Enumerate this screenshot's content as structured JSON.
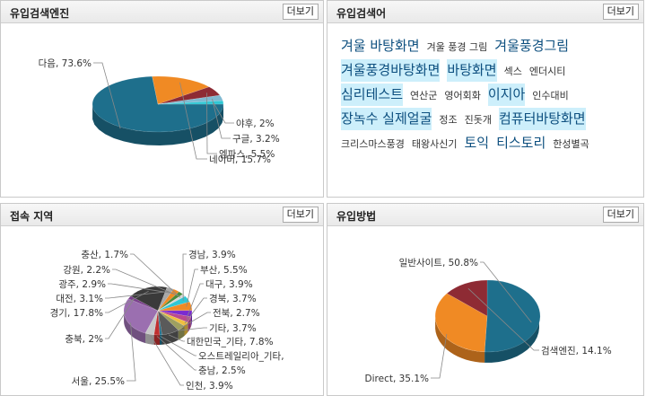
{
  "panels": {
    "engine": {
      "title": "유입검색엔진",
      "more": "더보기"
    },
    "keywords": {
      "title": "유입검색어",
      "more": "더보기"
    },
    "region": {
      "title": "접속 지역",
      "more": "더보기"
    },
    "method": {
      "title": "유입방법",
      "more": "더보기"
    }
  },
  "keywords": [
    {
      "text": "겨울 바탕화면",
      "size": 3
    },
    {
      "text": "겨울 풍경 그림",
      "size": 1
    },
    {
      "text": "겨울풍경그림",
      "size": 3
    },
    {
      "text": "겨울풍경바탕화면",
      "size": 3,
      "sel": true
    },
    {
      "text": "바탕화면",
      "size": 3,
      "sel": true
    },
    {
      "text": "섹스",
      "size": 1
    },
    {
      "text": "엔더시티",
      "size": 1
    },
    {
      "text": "심리테스트",
      "size": 3,
      "sel": true
    },
    {
      "text": "연산군",
      "size": 1
    },
    {
      "text": "영어회화",
      "size": 1
    },
    {
      "text": "이지아",
      "size": 3,
      "sel": true
    },
    {
      "text": "인수대비",
      "size": 1
    },
    {
      "text": "장녹수 실제얼굴",
      "size": 3,
      "sel": true
    },
    {
      "text": "정조",
      "size": 1
    },
    {
      "text": "진돗개",
      "size": 1
    },
    {
      "text": "컴퓨터바탕화면",
      "size": 3,
      "sel": true
    },
    {
      "text": "크리스마스풍경",
      "size": 1
    },
    {
      "text": "태왕사신기",
      "size": 1
    },
    {
      "text": "토익",
      "size": 3
    },
    {
      "text": "티스토리",
      "size": 3
    },
    {
      "text": "한성별곡",
      "size": 1
    }
  ],
  "chart_data": [
    {
      "type": "pie",
      "title": "유입검색엔진",
      "labels": [
        "다음",
        "네이버",
        "엠파스",
        "구글",
        "야후"
      ],
      "values": [
        73.6,
        15.7,
        5.5,
        3.2,
        2
      ],
      "label_text": [
        "다음, 73.6%",
        "네이버, 15.7%",
        "엠파스, 5.5%",
        "구글, 3.2%",
        "야후, 2%"
      ],
      "colors": [
        "#1e6f8c",
        "#f08a24",
        "#8e2b34",
        "#7fb9d1",
        "#2fc7d4"
      ]
    },
    {
      "type": "pie",
      "title": "접속 지역",
      "labels": [
        "서울",
        "충북",
        "경기",
        "대전",
        "광주",
        "강원",
        "충산",
        "경남",
        "부산",
        "대구",
        "경북",
        "전북",
        "기타",
        "대한민국_기타",
        "오스트레일리아_기타",
        "충남",
        "인천"
      ],
      "values": [
        25.5,
        2,
        17.8,
        3.1,
        2.9,
        2.2,
        1.7,
        3.9,
        5.5,
        3.9,
        3.7,
        2.7,
        3.7,
        7.8,
        1,
        2.5,
        3.9
      ],
      "label_text": [
        "서울, 25.5%",
        "충북, 2%",
        "경기, 17.8%",
        "대전, 3.1%",
        "광주, 2.9%",
        "강원, 2.2%",
        "충산, 1.7%",
        "경남, 3.9%",
        "부산, 5.5%",
        "대구, 3.9%",
        "경북, 3.7%",
        "전북, 2.7%",
        "기타, 3.7%",
        "대한민국_기타, 7.8%",
        "오스트레일리아_기타,",
        "충남, 2.5%",
        "인천, 3.9%"
      ],
      "colors": [
        "#9b6fb0",
        "#7a3f8c",
        "#3a3a3a",
        "#a8a8a8",
        "#f08a24",
        "#4a8a3a",
        "#d8d8d8",
        "#2fc7d4",
        "#f08a24",
        "#7a2bd0",
        "#b94a8f",
        "#f0c040",
        "#9ea060",
        "#5a5a5a",
        "#1e6f8c",
        "#c03030",
        "#c8c8c8"
      ]
    },
    {
      "type": "pie",
      "title": "유입방법",
      "labels": [
        "일반사이트",
        "Direct",
        "검색엔진"
      ],
      "values": [
        50.8,
        35.1,
        14.1
      ],
      "label_text": [
        "일반사이트, 50.8%",
        "Direct, 35.1%",
        "검색엔진, 14.1%"
      ],
      "colors": [
        "#1e6f8c",
        "#f08a24",
        "#8e2b34"
      ]
    }
  ]
}
